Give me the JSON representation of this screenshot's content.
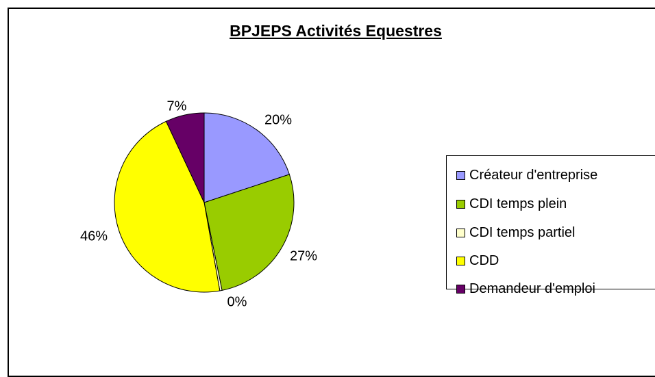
{
  "chart_data": {
    "type": "pie",
    "title": "BPJEPS Activités Equestres",
    "categories": [
      "Créateur d'entreprise",
      "CDI temps plein",
      "CDI temps partiel",
      "CDD",
      "Demandeur d'emploi"
    ],
    "values": [
      20,
      27,
      0.4,
      46,
      7
    ],
    "labels": [
      "20%",
      "27%",
      "0%",
      "46%",
      "7%"
    ],
    "colors": [
      "#9999FF",
      "#99CC00",
      "#FFFFCC",
      "#FFFF00",
      "#660066"
    ],
    "legend_position": "right"
  }
}
